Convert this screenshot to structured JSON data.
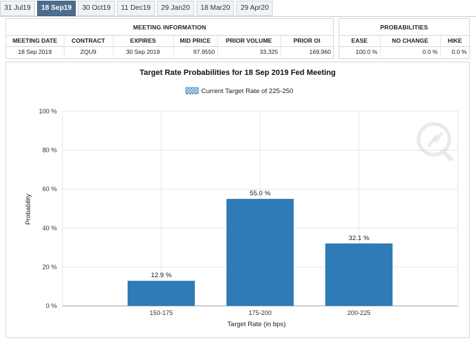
{
  "tabs": [
    {
      "label": "31 Jul19",
      "active": false
    },
    {
      "label": "18 Sep19",
      "active": true
    },
    {
      "label": "30 Oct19",
      "active": false
    },
    {
      "label": "11 Dec19",
      "active": false
    },
    {
      "label": "29 Jan20",
      "active": false
    },
    {
      "label": "18 Mar20",
      "active": false
    },
    {
      "label": "29 Apr20",
      "active": false
    }
  ],
  "meeting_info": {
    "title": "MEETING INFORMATION",
    "headers": [
      "MEETING DATE",
      "CONTRACT",
      "EXPIRES",
      "MID PRICE",
      "PRIOR VOLUME",
      "PRIOR OI"
    ],
    "row": [
      "18 Sep 2019",
      "ZQU9",
      "30 Sep 2019",
      "97.9550",
      "33,325",
      "169,960"
    ]
  },
  "probabilities": {
    "title": "PROBABILITIES",
    "headers": [
      "EASE",
      "NO CHANGE",
      "HIKE"
    ],
    "row": [
      "100.0 %",
      "0.0 %",
      "0.0 %"
    ]
  },
  "chart_data": {
    "type": "bar",
    "title": "Target Rate Probabilities for 18 Sep 2019 Fed Meeting",
    "legend": "Current Target Rate of 225-250",
    "legend_placement": "top-center",
    "categories": [
      "150-175",
      "175-200",
      "200-225"
    ],
    "values": [
      12.9,
      55.0,
      32.1
    ],
    "data_labels": [
      "12.9 %",
      "55.0 %",
      "32.1 %"
    ],
    "xlabel": "Target Rate (in bps)",
    "ylabel": "Probability",
    "ylim": [
      0,
      100
    ],
    "yticks": [
      "0 %",
      "20 %",
      "40 %",
      "60 %",
      "80 %",
      "100 %"
    ],
    "grid": true,
    "bar_color": "#2e7bb6"
  }
}
